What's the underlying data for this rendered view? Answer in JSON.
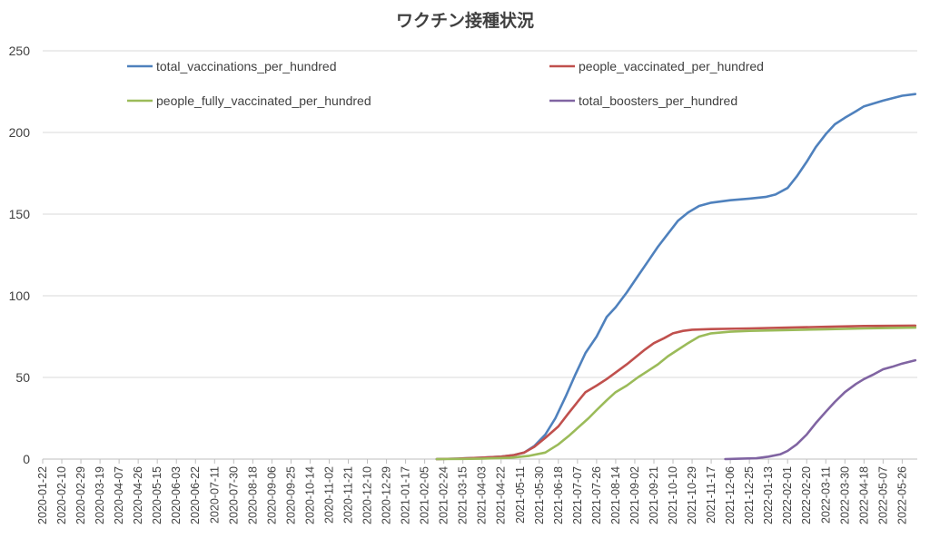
{
  "chart_data": {
    "type": "line",
    "title": "ワクチン接種状況",
    "xlabel": "",
    "ylabel": "",
    "ylim": [
      0,
      250
    ],
    "yticks": [
      0,
      50,
      100,
      150,
      200,
      250
    ],
    "xlim": [
      "2020-01-22",
      "2022-06-10"
    ],
    "x_tick_labels": [
      "2020-01-22",
      "2020-02-10",
      "2020-02-29",
      "2020-03-19",
      "2020-04-07",
      "2020-04-26",
      "2020-05-15",
      "2020-06-03",
      "2020-06-22",
      "2020-07-11",
      "2020-07-30",
      "2020-08-18",
      "2020-09-06",
      "2020-09-25",
      "2020-10-14",
      "2020-11-02",
      "2020-11-21",
      "2020-12-10",
      "2020-12-29",
      "2021-01-17",
      "2021-02-05",
      "2021-02-24",
      "2021-03-15",
      "2021-04-03",
      "2021-04-22",
      "2021-05-11",
      "2021-05-30",
      "2021-06-18",
      "2021-07-07",
      "2021-07-26",
      "2021-08-14",
      "2021-09-02",
      "2021-09-21",
      "2021-10-10",
      "2021-10-29",
      "2021-11-17",
      "2021-12-06",
      "2021-12-25",
      "2022-01-13",
      "2022-02-01",
      "2022-02-20",
      "2022-03-11",
      "2022-03-30",
      "2022-04-18",
      "2022-05-07",
      "2022-05-26"
    ],
    "grid": true,
    "legend_position": "top",
    "series": [
      {
        "name": "total_vaccinations_per_hundred",
        "color": "#4f81bd",
        "points": [
          [
            "2021-02-17",
            0
          ],
          [
            "2021-03-10",
            0.3
          ],
          [
            "2021-04-01",
            0.8
          ],
          [
            "2021-04-22",
            1.5
          ],
          [
            "2021-05-05",
            2.5
          ],
          [
            "2021-05-15",
            4
          ],
          [
            "2021-05-25",
            8
          ],
          [
            "2021-06-05",
            15
          ],
          [
            "2021-06-15",
            25
          ],
          [
            "2021-06-25",
            38
          ],
          [
            "2021-07-05",
            52
          ],
          [
            "2021-07-15",
            65
          ],
          [
            "2021-07-26",
            75
          ],
          [
            "2021-08-05",
            87
          ],
          [
            "2021-08-14",
            93
          ],
          [
            "2021-08-25",
            102
          ],
          [
            "2021-09-05",
            112
          ],
          [
            "2021-09-15",
            121
          ],
          [
            "2021-09-25",
            130
          ],
          [
            "2021-10-05",
            138
          ],
          [
            "2021-10-15",
            146
          ],
          [
            "2021-10-25",
            151
          ],
          [
            "2021-11-05",
            155
          ],
          [
            "2021-11-17",
            157
          ],
          [
            "2021-12-06",
            158.5
          ],
          [
            "2021-12-25",
            159.5
          ],
          [
            "2022-01-10",
            160.5
          ],
          [
            "2022-01-20",
            162
          ],
          [
            "2022-02-01",
            166
          ],
          [
            "2022-02-10",
            173
          ],
          [
            "2022-02-20",
            182
          ],
          [
            "2022-03-01",
            191
          ],
          [
            "2022-03-11",
            199
          ],
          [
            "2022-03-20",
            205
          ],
          [
            "2022-03-30",
            209
          ],
          [
            "2022-04-10",
            213
          ],
          [
            "2022-04-18",
            216
          ],
          [
            "2022-05-07",
            219.5
          ],
          [
            "2022-05-26",
            222.5
          ],
          [
            "2022-06-08",
            223.5
          ]
        ]
      },
      {
        "name": "people_vaccinated_per_hundred",
        "color": "#c0504d",
        "points": [
          [
            "2021-02-17",
            0
          ],
          [
            "2021-03-10",
            0.3
          ],
          [
            "2021-04-01",
            0.8
          ],
          [
            "2021-04-22",
            1.5
          ],
          [
            "2021-05-05",
            2.5
          ],
          [
            "2021-05-15",
            4
          ],
          [
            "2021-05-25",
            7.5
          ],
          [
            "2021-06-05",
            13
          ],
          [
            "2021-06-18",
            20
          ],
          [
            "2021-06-28",
            28
          ],
          [
            "2021-07-07",
            35
          ],
          [
            "2021-07-15",
            41
          ],
          [
            "2021-07-26",
            45
          ],
          [
            "2021-08-05",
            49
          ],
          [
            "2021-08-14",
            53
          ],
          [
            "2021-08-25",
            58
          ],
          [
            "2021-09-02",
            62
          ],
          [
            "2021-09-12",
            67
          ],
          [
            "2021-09-21",
            71
          ],
          [
            "2021-10-01",
            74
          ],
          [
            "2021-10-10",
            77
          ],
          [
            "2021-10-20",
            78.5
          ],
          [
            "2021-10-29",
            79.2
          ],
          [
            "2021-11-17",
            79.6
          ],
          [
            "2021-12-25",
            80
          ],
          [
            "2022-02-01",
            80.5
          ],
          [
            "2022-03-11",
            81
          ],
          [
            "2022-04-18",
            81.5
          ],
          [
            "2022-06-08",
            81.7
          ]
        ]
      },
      {
        "name": "people_fully_vaccinated_per_hundred",
        "color": "#9bbb59",
        "points": [
          [
            "2021-02-17",
            0
          ],
          [
            "2021-04-01",
            0.2
          ],
          [
            "2021-05-01",
            0.8
          ],
          [
            "2021-05-20",
            2
          ],
          [
            "2021-06-05",
            4
          ],
          [
            "2021-06-18",
            9
          ],
          [
            "2021-06-28",
            14
          ],
          [
            "2021-07-07",
            19
          ],
          [
            "2021-07-18",
            25
          ],
          [
            "2021-07-26",
            30
          ],
          [
            "2021-08-05",
            36
          ],
          [
            "2021-08-14",
            41
          ],
          [
            "2021-08-25",
            45
          ],
          [
            "2021-09-05",
            50
          ],
          [
            "2021-09-15",
            54
          ],
          [
            "2021-09-25",
            58
          ],
          [
            "2021-10-05",
            63
          ],
          [
            "2021-10-15",
            67
          ],
          [
            "2021-10-25",
            71
          ],
          [
            "2021-11-05",
            75
          ],
          [
            "2021-11-17",
            77
          ],
          [
            "2021-12-06",
            78
          ],
          [
            "2021-12-25",
            78.5
          ],
          [
            "2022-02-01",
            79
          ],
          [
            "2022-03-11",
            79.5
          ],
          [
            "2022-04-18",
            80
          ],
          [
            "2022-06-08",
            80.5
          ]
        ]
      },
      {
        "name": "total_boosters_per_hundred",
        "color": "#8064a2",
        "points": [
          [
            "2021-12-01",
            0
          ],
          [
            "2021-12-15",
            0.2
          ],
          [
            "2022-01-01",
            0.5
          ],
          [
            "2022-01-13",
            1.5
          ],
          [
            "2022-01-25",
            3
          ],
          [
            "2022-02-01",
            5
          ],
          [
            "2022-02-10",
            9
          ],
          [
            "2022-02-20",
            15
          ],
          [
            "2022-03-01",
            22
          ],
          [
            "2022-03-11",
            29
          ],
          [
            "2022-03-20",
            35
          ],
          [
            "2022-03-30",
            41
          ],
          [
            "2022-04-10",
            46
          ],
          [
            "2022-04-18",
            49
          ],
          [
            "2022-04-28",
            52
          ],
          [
            "2022-05-07",
            55
          ],
          [
            "2022-05-16",
            56.5
          ],
          [
            "2022-05-26",
            58.5
          ],
          [
            "2022-06-08",
            60.5
          ]
        ]
      }
    ]
  }
}
